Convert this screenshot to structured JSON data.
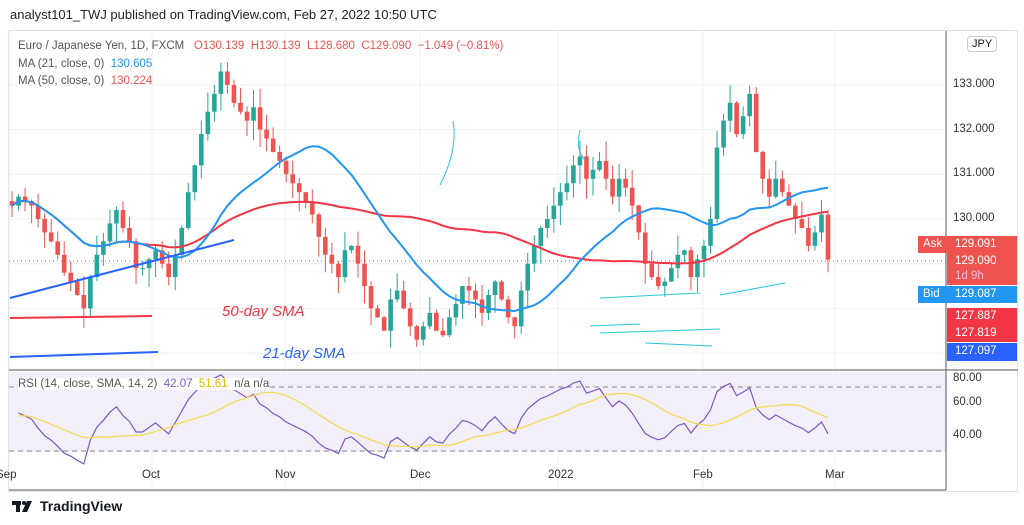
{
  "header": "analyst101_TWJ published on TradingView.com, Feb 27, 2022 10:50 UTC",
  "legend": {
    "symbol": "Euro / Japanese Yen, 1D, FXCM",
    "o": "O130.139",
    "h": "H130.139",
    "l": "L128.680",
    "c": "C129.090",
    "chg": "−1.049 (−0.81%)",
    "ma21_label": "MA (21, close, 0)",
    "ma21_val": "130.605",
    "ma50_label": "MA (50, close, 0)",
    "ma50_val": "130.224",
    "rsi_label": "RSI (14, close, SMA, 14, 2)",
    "rsi_val": "42.07",
    "rsi_sma": "51.61",
    "rsi_na": "n/a  n/a"
  },
  "currency": "JPY",
  "tags": {
    "ask_label": "Ask",
    "ask": "129.091",
    "last": "129.090",
    "countdown": "1d 9h",
    "bid_label": "Bid",
    "bid": "129.087",
    "t1": "127.887",
    "t2": "127.819",
    "t3": "127.097"
  },
  "annotations": {
    "sma50": "50-day SMA",
    "sma21": "21-day SMA"
  },
  "footer": "TradingView",
  "colors": {
    "up": "#26a69a",
    "down": "#ef5350",
    "ma21": "#2196f3",
    "ma50": "#f23645",
    "rsi": "#7e57c2",
    "rsi_ma": "#f5d94f"
  },
  "chart_data": {
    "type": "candlestick",
    "title": "Euro / Japanese Yen, 1D, FXCM",
    "y_ticks": [
      "133.000",
      "132.000",
      "131.000",
      "130.000"
    ],
    "rsi_ticks": [
      "80.00",
      "60.00",
      "40.00"
    ],
    "x_ticks": [
      "Sep",
      "Oct",
      "Nov",
      "Dec",
      "2022",
      "Feb",
      "Mar"
    ],
    "ylim": [
      126.6,
      134.1
    ],
    "closes": [
      130.3,
      130.5,
      130.4,
      130.3,
      130.0,
      129.7,
      129.5,
      129.2,
      128.8,
      128.6,
      128.3,
      128.0,
      128.7,
      129.2,
      129.5,
      129.9,
      130.2,
      129.8,
      129.5,
      128.9,
      128.9,
      129.1,
      129.3,
      129.0,
      128.7,
      129.2,
      129.8,
      130.6,
      131.2,
      131.9,
      132.4,
      132.8,
      133.3,
      133.0,
      132.6,
      132.4,
      132.2,
      132.5,
      132.0,
      131.8,
      131.5,
      131.3,
      131.0,
      130.8,
      130.6,
      130.4,
      130.1,
      129.6,
      129.2,
      129.0,
      128.7,
      129.3,
      129.4,
      129.0,
      128.5,
      128.0,
      127.8,
      127.5,
      128.2,
      128.4,
      128.0,
      127.6,
      127.3,
      127.6,
      127.9,
      127.5,
      127.4,
      127.8,
      128.1,
      128.5,
      128.4,
      128.2,
      127.9,
      128.3,
      128.6,
      128.2,
      127.8,
      127.6,
      128.4,
      129.0,
      129.4,
      129.8,
      130.0,
      130.3,
      130.6,
      130.8,
      131.2,
      131.4,
      130.9,
      131.1,
      131.3,
      130.9,
      130.5,
      130.9,
      130.7,
      130.3,
      129.7,
      129.0,
      128.7,
      128.5,
      128.6,
      128.9,
      129.2,
      129.3,
      128.7,
      129.1,
      129.4,
      130.0,
      131.6,
      132.2,
      132.6,
      131.9,
      132.3,
      132.8,
      131.5,
      130.9,
      130.5,
      130.9,
      130.6,
      130.3,
      130.0,
      129.8,
      129.4,
      129.7,
      130.1,
      129.09
    ]
  }
}
